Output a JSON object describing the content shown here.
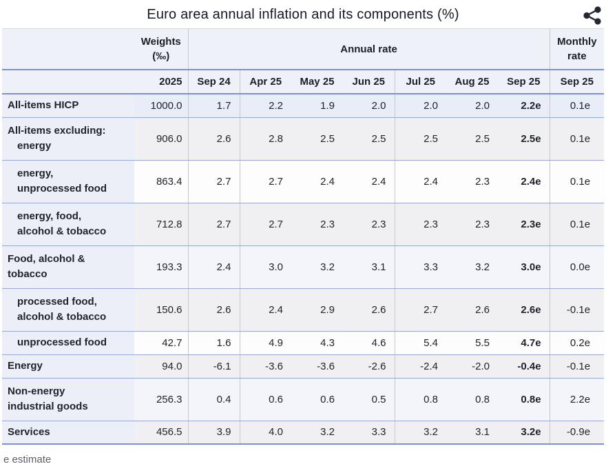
{
  "title": "Euro area annual inflation and its components (%)",
  "share_icon": "share-icon",
  "table": {
    "header": {
      "weights_line1": "Weights",
      "weights_line2": "(‰)",
      "annual_rate_label": "Annual rate",
      "monthly_line1": "Monthly",
      "monthly_line2": "rate",
      "weights_year": "2025",
      "annual_months": [
        "Sep 24",
        "Apr 25",
        "May 25",
        "Jun 25",
        "Jul 25",
        "Aug 25",
        "Sep 25"
      ],
      "monthly_month": "Sep 25"
    },
    "rows": [
      {
        "label_lines": [
          {
            "text": "All-items HICP",
            "indent": false
          }
        ],
        "weight": "1000.0",
        "annual": [
          "1.7",
          "2.2",
          "1.9",
          "2.0",
          "2.0",
          "2.0",
          "2.2e"
        ],
        "monthly": "0.1e",
        "bg": "h"
      },
      {
        "label_lines": [
          {
            "text": "All-items excluding:",
            "indent": false
          },
          {
            "text": "energy",
            "indent": true
          }
        ],
        "weight": "906.0",
        "annual": [
          "2.6",
          "2.8",
          "2.5",
          "2.5",
          "2.5",
          "2.5",
          "2.5e"
        ],
        "monthly": "0.1e",
        "bg": "g"
      },
      {
        "label_lines": [
          {
            "text": "energy,",
            "indent": true
          },
          {
            "text": "unprocessed food",
            "indent": true
          }
        ],
        "weight": "863.4",
        "annual": [
          "2.7",
          "2.7",
          "2.4",
          "2.4",
          "2.4",
          "2.3",
          "2.4e"
        ],
        "monthly": "0.1e",
        "bg": "w"
      },
      {
        "label_lines": [
          {
            "text": "energy, food,",
            "indent": true
          },
          {
            "text": "alcohol & tobacco",
            "indent": true
          }
        ],
        "weight": "712.8",
        "annual": [
          "2.7",
          "2.7",
          "2.3",
          "2.3",
          "2.3",
          "2.3",
          "2.3e"
        ],
        "monthly": "0.1e",
        "bg": "g"
      },
      {
        "label_lines": [
          {
            "text": "Food, alcohol &",
            "indent": false
          },
          {
            "text": "tobacco",
            "indent": false
          }
        ],
        "weight": "193.3",
        "annual": [
          "2.4",
          "3.0",
          "3.2",
          "3.1",
          "3.3",
          "3.2",
          "3.0e"
        ],
        "monthly": "0.0e",
        "bg": "t"
      },
      {
        "label_lines": [
          {
            "text": "processed food,",
            "indent": true
          },
          {
            "text": "alcohol & tobacco",
            "indent": true
          }
        ],
        "weight": "150.6",
        "annual": [
          "2.6",
          "2.4",
          "2.9",
          "2.6",
          "2.7",
          "2.6",
          "2.6e"
        ],
        "monthly": "-0.1e",
        "bg": "g"
      },
      {
        "label_lines": [
          {
            "text": "unprocessed food",
            "indent": true
          }
        ],
        "weight": "42.7",
        "annual": [
          "1.6",
          "4.9",
          "4.3",
          "4.6",
          "5.4",
          "5.5",
          "4.7e"
        ],
        "monthly": "0.2e",
        "bg": "w"
      },
      {
        "label_lines": [
          {
            "text": "Energy",
            "indent": false
          }
        ],
        "weight": "94.0",
        "annual": [
          "-6.1",
          "-3.6",
          "-3.6",
          "-2.6",
          "-2.4",
          "-2.0",
          "-0.4e"
        ],
        "monthly": "-0.1e",
        "bg": "g"
      },
      {
        "label_lines": [
          {
            "text": "Non-energy",
            "indent": false
          },
          {
            "text": "industrial goods",
            "indent": false
          }
        ],
        "weight": "256.3",
        "annual": [
          "0.4",
          "0.6",
          "0.6",
          "0.5",
          "0.8",
          "0.8",
          "0.8e"
        ],
        "monthly": "2.2e",
        "bg": "t"
      },
      {
        "label_lines": [
          {
            "text": "Services",
            "indent": false
          }
        ],
        "weight": "456.5",
        "annual": [
          "3.9",
          "4.0",
          "3.2",
          "3.3",
          "3.2",
          "3.1",
          "3.2e"
        ],
        "monthly": "-0.9e",
        "bg": "g"
      }
    ]
  },
  "footnote": "e estimate",
  "colors": {
    "header_bg": "#eff1f8",
    "label_col_bg": "#edeff8",
    "row_highlight_bg": "#e9edf8",
    "row_gray_bg": "#f0f0f2",
    "row_tint_bg": "#f3f5fb",
    "blue_rule": "#7d90d0",
    "row_rule": "#98a7d4"
  },
  "chart_data": {
    "type": "table",
    "title": "Euro area annual inflation and its components (%)",
    "weights_year": "2025",
    "annual_rate_months": [
      "Sep 24",
      "Apr 25",
      "May 25",
      "Jun 25",
      "Jul 25",
      "Aug 25",
      "Sep 25"
    ],
    "monthly_rate_month": "Sep 25",
    "sep_25_values_are_estimates": true,
    "estimate_note": "e estimate",
    "rows": [
      {
        "component": "All-items HICP",
        "weight_permille": 1000.0,
        "annual_rates": [
          1.7,
          2.2,
          1.9,
          2.0,
          2.0,
          2.0,
          2.2
        ],
        "monthly_rate": 0.1
      },
      {
        "component": "All-items excluding: energy",
        "weight_permille": 906.0,
        "annual_rates": [
          2.6,
          2.8,
          2.5,
          2.5,
          2.5,
          2.5,
          2.5
        ],
        "monthly_rate": 0.1
      },
      {
        "component": "All-items excluding: energy, unprocessed food",
        "weight_permille": 863.4,
        "annual_rates": [
          2.7,
          2.7,
          2.4,
          2.4,
          2.4,
          2.3,
          2.4
        ],
        "monthly_rate": 0.1
      },
      {
        "component": "All-items excluding: energy, food, alcohol & tobacco",
        "weight_permille": 712.8,
        "annual_rates": [
          2.7,
          2.7,
          2.3,
          2.3,
          2.3,
          2.3,
          2.3
        ],
        "monthly_rate": 0.1
      },
      {
        "component": "Food, alcohol & tobacco",
        "weight_permille": 193.3,
        "annual_rates": [
          2.4,
          3.0,
          3.2,
          3.1,
          3.3,
          3.2,
          3.0
        ],
        "monthly_rate": 0.0
      },
      {
        "component": "processed food, alcohol & tobacco",
        "weight_permille": 150.6,
        "annual_rates": [
          2.6,
          2.4,
          2.9,
          2.6,
          2.7,
          2.6,
          2.6
        ],
        "monthly_rate": -0.1
      },
      {
        "component": "unprocessed food",
        "weight_permille": 42.7,
        "annual_rates": [
          1.6,
          4.9,
          4.3,
          4.6,
          5.4,
          5.5,
          4.7
        ],
        "monthly_rate": 0.2
      },
      {
        "component": "Energy",
        "weight_permille": 94.0,
        "annual_rates": [
          -6.1,
          -3.6,
          -3.6,
          -2.6,
          -2.4,
          -2.0,
          -0.4
        ],
        "monthly_rate": -0.1
      },
      {
        "component": "Non-energy industrial goods",
        "weight_permille": 256.3,
        "annual_rates": [
          0.4,
          0.6,
          0.6,
          0.5,
          0.8,
          0.8,
          0.8
        ],
        "monthly_rate": 2.2
      },
      {
        "component": "Services",
        "weight_permille": 456.5,
        "annual_rates": [
          3.9,
          4.0,
          3.2,
          3.3,
          3.2,
          3.1,
          3.2
        ],
        "monthly_rate": -0.9
      }
    ]
  }
}
